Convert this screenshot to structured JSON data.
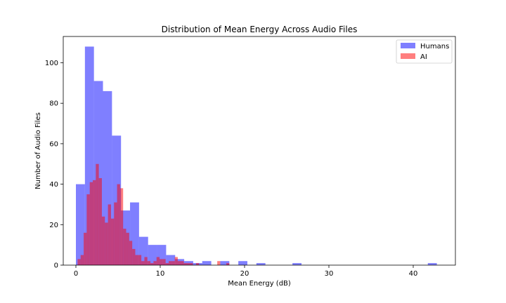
{
  "chart_data": {
    "type": "histogram",
    "title": "Distribution of Mean Energy Across Audio Files",
    "xlabel": "Mean Energy (dB)",
    "ylabel": "Number of Audio Files",
    "xlim": [
      -1.5,
      45
    ],
    "ylim": [
      0,
      113
    ],
    "xticks": [
      0,
      10,
      20,
      30,
      40
    ],
    "yticks": [
      0,
      20,
      40,
      60,
      80,
      100
    ],
    "legend_position": "top-right",
    "series": [
      {
        "name": "Humans",
        "color": "#0000ff",
        "opacity": 0.5,
        "bin_edges": [
          0.0,
          1.07,
          2.14,
          3.21,
          4.28,
          5.35,
          6.42,
          7.49,
          8.56,
          9.63,
          10.7,
          11.77,
          12.84,
          13.91,
          14.98,
          16.05,
          17.12,
          18.19,
          19.26,
          20.33,
          21.4,
          22.47,
          23.54,
          24.61,
          25.68,
          26.75,
          27.82,
          28.89,
          29.96,
          31.03,
          32.1,
          33.17,
          34.24,
          35.31,
          36.38,
          37.45,
          38.52,
          39.59,
          40.66,
          41.73,
          42.8
        ],
        "counts": [
          40,
          108,
          91,
          86,
          64,
          27,
          31,
          14,
          10,
          10,
          5,
          3,
          2,
          1,
          2,
          0,
          2,
          0,
          2,
          0,
          1,
          0,
          0,
          0,
          1,
          0,
          0,
          0,
          0,
          0,
          0,
          0,
          0,
          0,
          0,
          0,
          0,
          0,
          0,
          1
        ]
      },
      {
        "name": "AI",
        "color": "#ff0000",
        "opacity": 0.5,
        "bin_edges": [
          0.2,
          0.56,
          0.92,
          1.28,
          1.64,
          2.0,
          2.36,
          2.72,
          3.08,
          3.44,
          3.8,
          4.16,
          4.52,
          4.88,
          5.24,
          5.6,
          5.96,
          6.32,
          6.68,
          7.04,
          7.4,
          7.76,
          8.12,
          8.48,
          8.84,
          9.2,
          9.56,
          9.92,
          10.28,
          10.64,
          11.0,
          11.36,
          11.72,
          12.08,
          12.44,
          12.8,
          13.16,
          13.52,
          13.88,
          14.24,
          14.6,
          14.96,
          15.32,
          15.68,
          16.04,
          16.4,
          16.76,
          17.12,
          17.48,
          17.84,
          18.2
        ],
        "counts": [
          3,
          5,
          16,
          35,
          41,
          42,
          50,
          43,
          24,
          21,
          30,
          23,
          31,
          40,
          38,
          18,
          16,
          12,
          8,
          5,
          5,
          2,
          4,
          2,
          1,
          2,
          4,
          3,
          3,
          1,
          2,
          2,
          4,
          2,
          2,
          1,
          1,
          1,
          0,
          1,
          0,
          0,
          0,
          0,
          0,
          0,
          2,
          0,
          0,
          1
        ]
      }
    ]
  }
}
